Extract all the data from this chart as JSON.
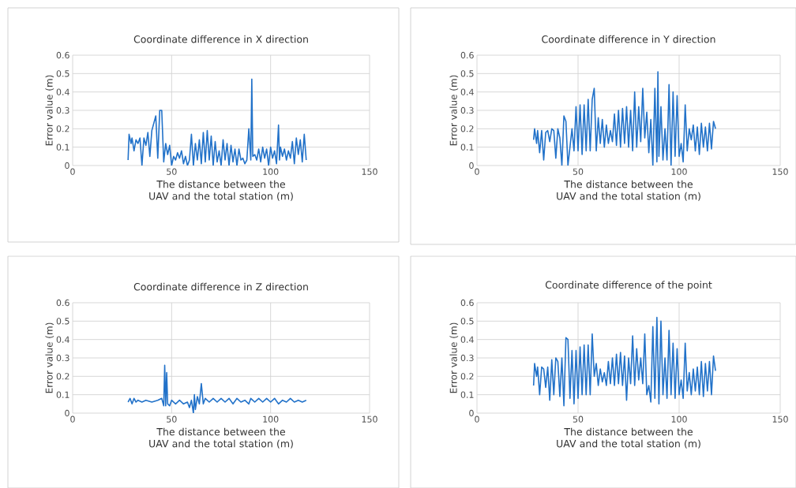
{
  "chart_data": [
    {
      "type": "line",
      "title": "Coordinate difference in X direction",
      "xlabel": "The distance between the UAV and the total station (m)",
      "ylabel": "Error value (m)",
      "color": "#2272c9",
      "xlim": [
        0,
        150
      ],
      "ylim": [
        0,
        0.6
      ],
      "xticks": [
        0,
        50,
        100,
        150
      ],
      "yticks": [
        0,
        0.1,
        0.2,
        0.3,
        0.4,
        0.5,
        0.6
      ],
      "grid": true,
      "x": [
        28,
        28.5,
        29.5,
        30,
        31,
        32,
        33,
        34,
        35,
        36,
        37,
        38,
        39,
        40,
        41,
        42,
        43,
        44,
        45,
        46,
        47,
        48,
        49,
        50,
        51,
        52,
        53,
        54,
        55,
        56,
        57,
        58,
        59,
        60,
        61,
        62,
        63,
        64,
        65,
        66,
        67,
        68,
        69,
        70,
        71,
        72,
        73,
        74,
        75,
        76,
        77,
        78,
        79,
        80,
        81,
        82,
        83,
        84,
        85,
        86,
        87,
        88,
        89,
        90,
        90.5,
        91,
        92,
        93,
        94,
        95,
        96,
        97,
        98,
        99,
        100,
        101,
        102,
        103,
        104,
        104.5,
        105,
        106,
        107,
        108,
        109,
        110,
        111,
        112,
        113,
        114,
        115,
        116,
        117,
        118
      ],
      "values": [
        0.03,
        0.17,
        0.12,
        0.15,
        0.08,
        0.14,
        0.12,
        0.15,
        0.0,
        0.15,
        0.11,
        0.18,
        0.05,
        0.19,
        0.23,
        0.27,
        0.04,
        0.3,
        0.3,
        0.02,
        0.12,
        0.06,
        0.11,
        0.0,
        0.05,
        0.03,
        0.07,
        0.04,
        0.08,
        0.01,
        0.05,
        0.0,
        0.03,
        0.17,
        0.0,
        0.12,
        0.03,
        0.14,
        0.01,
        0.18,
        0.02,
        0.19,
        0.03,
        0.16,
        0.0,
        0.13,
        0.02,
        0.08,
        0.0,
        0.14,
        0.03,
        0.12,
        0.0,
        0.11,
        0.02,
        0.09,
        0.0,
        0.09,
        0.03,
        0.04,
        0.01,
        0.03,
        0.2,
        0.03,
        0.47,
        0.05,
        0.06,
        0.03,
        0.09,
        0.02,
        0.1,
        0.04,
        0.09,
        0.0,
        0.1,
        0.04,
        0.08,
        0.01,
        0.22,
        0.03,
        0.1,
        0.05,
        0.09,
        0.03,
        0.08,
        0.04,
        0.13,
        0.01,
        0.15,
        0.06,
        0.14,
        0.02,
        0.17,
        0.03
      ]
    },
    {
      "type": "line",
      "title": "Coordinate difference in Y direction",
      "xlabel": "The distance between the UAV and the total station (m)",
      "ylabel": "Error value (m)",
      "color": "#2272c9",
      "xlim": [
        0,
        150
      ],
      "ylim": [
        0,
        0.6
      ],
      "xticks": [
        0,
        50,
        100,
        150
      ],
      "yticks": [
        0,
        0.1,
        0.2,
        0.3,
        0.4,
        0.5,
        0.6
      ],
      "grid": true,
      "x": [
        28,
        28.5,
        29.5,
        30,
        31,
        32,
        33,
        34,
        35,
        36,
        37,
        38,
        39,
        40,
        41,
        42,
        43,
        44,
        45,
        46,
        47,
        48,
        49,
        50,
        51,
        52,
        53,
        54,
        55,
        56,
        57,
        58,
        59,
        60,
        61,
        62,
        63,
        64,
        65,
        66,
        67,
        68,
        69,
        70,
        71,
        72,
        73,
        74,
        75,
        76,
        77,
        78,
        79,
        80,
        81,
        82,
        83,
        84,
        85,
        86,
        87,
        88,
        89,
        89.5,
        90,
        91,
        92,
        93,
        94,
        95,
        96,
        97,
        98,
        99,
        100,
        101,
        102,
        103,
        104,
        105,
        106,
        107,
        108,
        109,
        110,
        111,
        112,
        113,
        114,
        115,
        116,
        117,
        118
      ],
      "values": [
        0.14,
        0.2,
        0.12,
        0.19,
        0.07,
        0.19,
        0.03,
        0.18,
        0.19,
        0.13,
        0.2,
        0.19,
        0.04,
        0.2,
        0.15,
        0.0,
        0.27,
        0.24,
        0.0,
        0.1,
        0.2,
        0.08,
        0.32,
        0.08,
        0.33,
        0.06,
        0.33,
        0.08,
        0.36,
        0.08,
        0.36,
        0.42,
        0.08,
        0.26,
        0.12,
        0.25,
        0.1,
        0.22,
        0.12,
        0.19,
        0.13,
        0.28,
        0.11,
        0.3,
        0.1,
        0.31,
        0.12,
        0.32,
        0.1,
        0.3,
        0.08,
        0.4,
        0.1,
        0.32,
        0.13,
        0.42,
        0.15,
        0.29,
        0.07,
        0.25,
        0.0,
        0.42,
        0.02,
        0.51,
        0.05,
        0.32,
        0.03,
        0.2,
        0.03,
        0.44,
        0.0,
        0.4,
        0.05,
        0.38,
        0.05,
        0.12,
        0.02,
        0.33,
        0.08,
        0.2,
        0.14,
        0.22,
        0.08,
        0.21,
        0.06,
        0.23,
        0.1,
        0.21,
        0.08,
        0.23,
        0.09,
        0.24,
        0.2
      ]
    },
    {
      "type": "line",
      "title": "Coordinate difference in Z direction",
      "xlabel": "The distance between the UAV and the total station (m)",
      "ylabel": "Error value (m)",
      "color": "#2272c9",
      "xlim": [
        0,
        150
      ],
      "ylim": [
        0,
        0.6
      ],
      "xticks": [
        0,
        50,
        100,
        150
      ],
      "yticks": [
        0,
        0.1,
        0.2,
        0.3,
        0.4,
        0.5,
        0.6
      ],
      "grid": true,
      "x": [
        28,
        29,
        30,
        31,
        32,
        33,
        35,
        37,
        40,
        43,
        45,
        46,
        46.5,
        47,
        47.5,
        48,
        49,
        50,
        52,
        54,
        56,
        58,
        59,
        60,
        61,
        61.5,
        62,
        63,
        64,
        65,
        66,
        67,
        69,
        71,
        73,
        75,
        77,
        79,
        81,
        83,
        85,
        87,
        89,
        90,
        92,
        94,
        96,
        98,
        100,
        102,
        104,
        106,
        108,
        110,
        112,
        114,
        116,
        118
      ],
      "values": [
        0.06,
        0.08,
        0.05,
        0.08,
        0.06,
        0.07,
        0.06,
        0.07,
        0.06,
        0.07,
        0.08,
        0.04,
        0.26,
        0.04,
        0.22,
        0.05,
        0.04,
        0.07,
        0.05,
        0.07,
        0.05,
        0.06,
        0.03,
        0.07,
        0.0,
        0.1,
        0.02,
        0.09,
        0.05,
        0.16,
        0.05,
        0.08,
        0.06,
        0.08,
        0.06,
        0.08,
        0.06,
        0.08,
        0.05,
        0.08,
        0.06,
        0.07,
        0.05,
        0.08,
        0.06,
        0.08,
        0.06,
        0.08,
        0.06,
        0.08,
        0.05,
        0.07,
        0.06,
        0.08,
        0.06,
        0.07,
        0.06,
        0.07
      ]
    },
    {
      "type": "line",
      "title": "Coordinate difference of the point",
      "xlabel": "The distance between the UAV and the total station (m)",
      "ylabel": "Error value (m)",
      "color": "#2272c9",
      "xlim": [
        0,
        150
      ],
      "ylim": [
        0,
        0.6
      ],
      "xticks": [
        0,
        50,
        100,
        150
      ],
      "yticks": [
        0,
        0.1,
        0.2,
        0.3,
        0.4,
        0.5,
        0.6
      ],
      "grid": true,
      "x": [
        28,
        28.5,
        29.5,
        30,
        31,
        32,
        33,
        34,
        35,
        36,
        37,
        38,
        39,
        40,
        41,
        42,
        43,
        44,
        45,
        46,
        47,
        48,
        49,
        50,
        51,
        52,
        53,
        54,
        55,
        56,
        57,
        58,
        59,
        60,
        61,
        62,
        63,
        64,
        65,
        66,
        67,
        68,
        69,
        70,
        71,
        72,
        73,
        74,
        75,
        76,
        77,
        78,
        79,
        80,
        81,
        82,
        83,
        84,
        85,
        86,
        87,
        88,
        89,
        90,
        91,
        92,
        93,
        94,
        95,
        96,
        97,
        98,
        99,
        100,
        101,
        102,
        103,
        104,
        105,
        106,
        107,
        108,
        109,
        110,
        111,
        112,
        113,
        114,
        115,
        116,
        117,
        118
      ],
      "values": [
        0.15,
        0.27,
        0.2,
        0.25,
        0.1,
        0.25,
        0.24,
        0.14,
        0.25,
        0.07,
        0.29,
        0.1,
        0.3,
        0.28,
        0.09,
        0.3,
        0.04,
        0.41,
        0.4,
        0.08,
        0.34,
        0.05,
        0.34,
        0.08,
        0.36,
        0.1,
        0.37,
        0.1,
        0.37,
        0.1,
        0.43,
        0.2,
        0.27,
        0.15,
        0.24,
        0.17,
        0.22,
        0.15,
        0.28,
        0.16,
        0.3,
        0.15,
        0.32,
        0.16,
        0.33,
        0.15,
        0.31,
        0.07,
        0.3,
        0.16,
        0.42,
        0.15,
        0.35,
        0.18,
        0.3,
        0.16,
        0.43,
        0.1,
        0.15,
        0.06,
        0.47,
        0.08,
        0.52,
        0.05,
        0.5,
        0.1,
        0.3,
        0.08,
        0.45,
        0.1,
        0.38,
        0.08,
        0.35,
        0.1,
        0.18,
        0.08,
        0.38,
        0.12,
        0.22,
        0.1,
        0.24,
        0.12,
        0.25,
        0.1,
        0.28,
        0.09,
        0.27,
        0.12,
        0.28,
        0.1,
        0.31,
        0.23
      ]
    }
  ]
}
